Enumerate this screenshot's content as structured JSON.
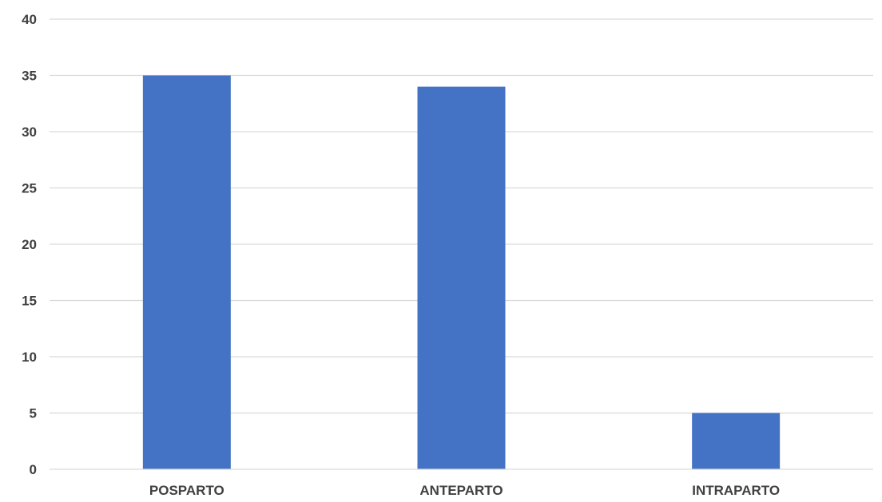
{
  "chart_data": {
    "type": "bar",
    "title": "",
    "xlabel": "",
    "ylabel": "",
    "categories": [
      "POSPARTO",
      "ANTEPARTO",
      "INTRAPARTO"
    ],
    "values": [
      35,
      34,
      5
    ],
    "ylim": [
      0,
      40
    ],
    "yticks": [
      "0",
      "5",
      "10",
      "15",
      "20",
      "25",
      "30",
      "35",
      "40"
    ],
    "grid": true,
    "legend": "none",
    "bar_color": "#4472c4",
    "gridline_color": "#d9d9d9",
    "label_color": "#404040"
  }
}
